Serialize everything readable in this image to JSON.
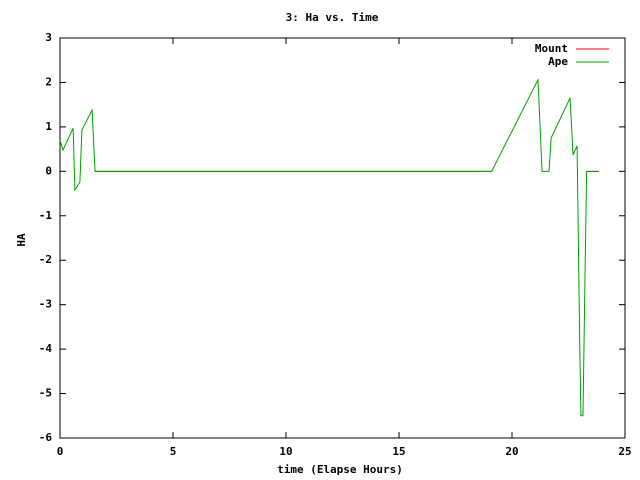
{
  "chart_data": {
    "type": "line",
    "title": "3: Ha vs. Time",
    "x_label": "time (Elapse Hours)",
    "y_label": "HA",
    "x": [
      0,
      0.13,
      0.58,
      0.66,
      0.88,
      0.97,
      1.42,
      1.55,
      19.1,
      21.15,
      21.33,
      21.64,
      21.73,
      22.57,
      22.7,
      22.88,
      23.0,
      23.05,
      23.14,
      23.3,
      23.85
    ],
    "series": [
      {
        "name": "Mount",
        "color": "#ff0000",
        "values": [
          null,
          null,
          null,
          null,
          null,
          null,
          null,
          0,
          0,
          null,
          null,
          null,
          null,
          null,
          null,
          null,
          null,
          null,
          null,
          0,
          0
        ]
      },
      {
        "name": "Ape",
        "color": "#00a000",
        "values": [
          0.7,
          0.48,
          0.97,
          -0.42,
          -0.24,
          0.93,
          1.38,
          0,
          0,
          2.06,
          0,
          0,
          0.75,
          1.65,
          0.37,
          0.57,
          -4.0,
          -5.5,
          -5.5,
          0,
          0
        ]
      }
    ],
    "xlim": [
      0,
      25
    ],
    "xticks": [
      0,
      5,
      10,
      15,
      20,
      25
    ],
    "ylim": [
      -6,
      3
    ],
    "yticks": [
      -6,
      -5,
      -4,
      -3,
      -2,
      -1,
      0,
      1,
      2,
      3
    ],
    "grid": false,
    "legend": "top-right"
  }
}
